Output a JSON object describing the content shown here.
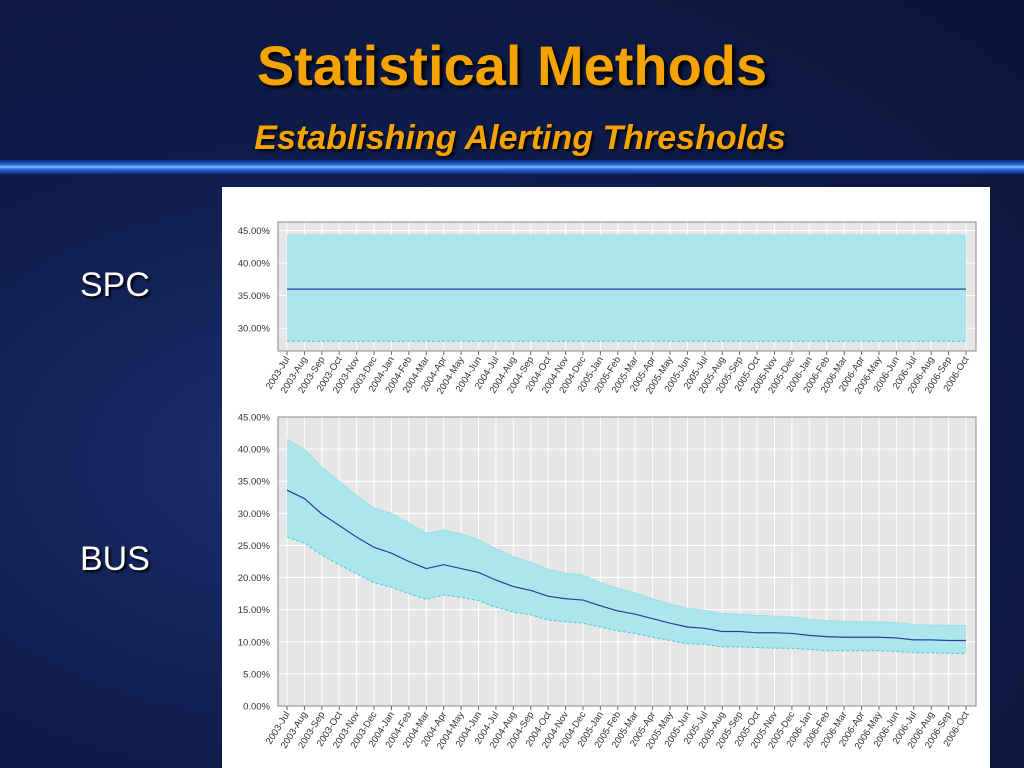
{
  "slide": {
    "title": "Statistical Methods",
    "subtitle": "Establishing Alerting Thresholds",
    "labels": {
      "spc": "SPC",
      "bus": "BUS"
    }
  },
  "colors": {
    "band": "#a9e6ec",
    "line": "#2a3f9e",
    "lower_edge": "#3fd0e0",
    "plot_bg": "#e6e6e6",
    "gold": "#f5a300"
  },
  "chart_data": [
    {
      "type": "area",
      "name": "SPC",
      "categories": [
        "2003-Jul",
        "2003-Aug",
        "2003-Sep",
        "2003-Oct",
        "2003-Nov",
        "2003-Dec",
        "2004-Jan",
        "2004-Feb",
        "2004-Mar",
        "2004-Apr",
        "2004-May",
        "2004-Jun",
        "2004-Jul",
        "2004-Aug",
        "2004-Sep",
        "2004-Oct",
        "2004-Nov",
        "2004-Dec",
        "2005-Jan",
        "2005-Feb",
        "2005-Mar",
        "2005-Apr",
        "2005-May",
        "2005-Jun",
        "2005-Jul",
        "2005-Aug",
        "2005-Sep",
        "2005-Oct",
        "2005-Nov",
        "2005-Dec",
        "2006-Jan",
        "2006-Feb",
        "2006-Mar",
        "2006-Apr",
        "2006-May",
        "2006-Jun",
        "2006-Jul",
        "2006-Aug",
        "2006-Sep",
        "2006-Oct"
      ],
      "y_ticks": [
        "45.00%",
        "40.00%",
        "35.00%",
        "30.00%"
      ],
      "ylim": [
        26.5,
        46.3
      ],
      "tick_values": [
        45,
        40,
        35,
        30
      ],
      "center": [
        36,
        36,
        36,
        36,
        36,
        36,
        36,
        36,
        36,
        36,
        36,
        36,
        36,
        36,
        36,
        36,
        36,
        36,
        36,
        36,
        36,
        36,
        36,
        36,
        36,
        36,
        36,
        36,
        36,
        36,
        36,
        36,
        36,
        36,
        36,
        36,
        36,
        36,
        36,
        36
      ],
      "upper": [
        44.3,
        44.3,
        44.3,
        44.3,
        44.3,
        44.3,
        44.3,
        44.3,
        44.3,
        44.3,
        44.3,
        44.3,
        44.3,
        44.3,
        44.3,
        44.3,
        44.3,
        44.3,
        44.3,
        44.3,
        44.3,
        44.3,
        44.3,
        44.3,
        44.3,
        44.3,
        44.3,
        44.3,
        44.3,
        44.3,
        44.3,
        44.3,
        44.3,
        44.3,
        44.3,
        44.3,
        44.3,
        44.3,
        44.3,
        44.3
      ],
      "lower": [
        28.0,
        28.0,
        28.0,
        28.0,
        28.0,
        28.0,
        28.0,
        28.0,
        28.0,
        28.0,
        28.0,
        28.0,
        28.0,
        28.0,
        28.0,
        28.0,
        28.0,
        28.0,
        28.0,
        28.0,
        28.0,
        28.0,
        28.0,
        28.0,
        28.0,
        28.0,
        28.0,
        28.0,
        28.0,
        28.0,
        28.0,
        28.0,
        28.0,
        28.0,
        28.0,
        28.0,
        28.0,
        28.0,
        28.0,
        28.0
      ],
      "grid": true
    },
    {
      "type": "area",
      "name": "BUS",
      "categories": [
        "2003-Jul",
        "2003-Aug",
        "2003-Sep",
        "2003-Oct",
        "2003-Nov",
        "2003-Dec",
        "2004-Jan",
        "2004-Feb",
        "2004-Mar",
        "2004-Apr",
        "2004-May",
        "2004-Jun",
        "2004-Jul",
        "2004-Aug",
        "2004-Sep",
        "2004-Oct",
        "2004-Nov",
        "2004-Dec",
        "2005-Jan",
        "2005-Feb",
        "2005-Mar",
        "2005-Apr",
        "2005-May",
        "2005-Jun",
        "2005-Jul",
        "2005-Aug",
        "2005-Sep",
        "2005-Oct",
        "2005-Nov",
        "2005-Dec",
        "2006-Jan",
        "2006-Feb",
        "2006-Mar",
        "2006-Apr",
        "2006-May",
        "2006-Jun",
        "2006-Jul",
        "2006-Aug",
        "2006-Sep",
        "2006-Oct"
      ],
      "y_ticks": [
        "45.00%",
        "40.00%",
        "35.00%",
        "30.00%",
        "25.00%",
        "20.00%",
        "15.00%",
        "10.00%",
        "5.00%",
        "0.00%"
      ],
      "ylim": [
        0,
        45
      ],
      "tick_values": [
        45,
        40,
        35,
        30,
        25,
        20,
        15,
        10,
        5,
        0
      ],
      "center": [
        33.6,
        32.3,
        29.9,
        28.1,
        26.3,
        24.7,
        23.8,
        22.5,
        21.4,
        22.0,
        21.4,
        20.8,
        19.6,
        18.6,
        18.0,
        17.1,
        16.7,
        16.5,
        15.6,
        14.8,
        14.3,
        13.6,
        12.9,
        12.3,
        12.1,
        11.6,
        11.6,
        11.4,
        11.4,
        11.3,
        11.0,
        10.8,
        10.7,
        10.7,
        10.7,
        10.6,
        10.3,
        10.3,
        10.2,
        10.2
      ],
      "upper": [
        41.5,
        40.0,
        37.2,
        35.0,
        32.8,
        30.8,
        30.0,
        28.5,
        26.9,
        27.4,
        26.8,
        25.9,
        24.5,
        23.2,
        22.4,
        21.3,
        20.7,
        20.4,
        19.2,
        18.3,
        17.6,
        16.7,
        15.9,
        15.2,
        14.9,
        14.4,
        14.3,
        14.1,
        14.0,
        13.9,
        13.5,
        13.3,
        13.2,
        13.1,
        13.1,
        13.0,
        12.7,
        12.6,
        12.6,
        12.5
      ],
      "lower": [
        26.3,
        25.4,
        23.5,
        22.0,
        20.6,
        19.2,
        18.5,
        17.5,
        16.6,
        17.3,
        16.9,
        16.4,
        15.4,
        14.6,
        14.2,
        13.4,
        13.1,
        12.9,
        12.3,
        11.7,
        11.3,
        10.7,
        10.2,
        9.7,
        9.6,
        9.2,
        9.2,
        9.1,
        9.0,
        9.0,
        8.8,
        8.6,
        8.6,
        8.6,
        8.6,
        8.5,
        8.3,
        8.3,
        8.2,
        8.2
      ],
      "grid": true
    }
  ]
}
